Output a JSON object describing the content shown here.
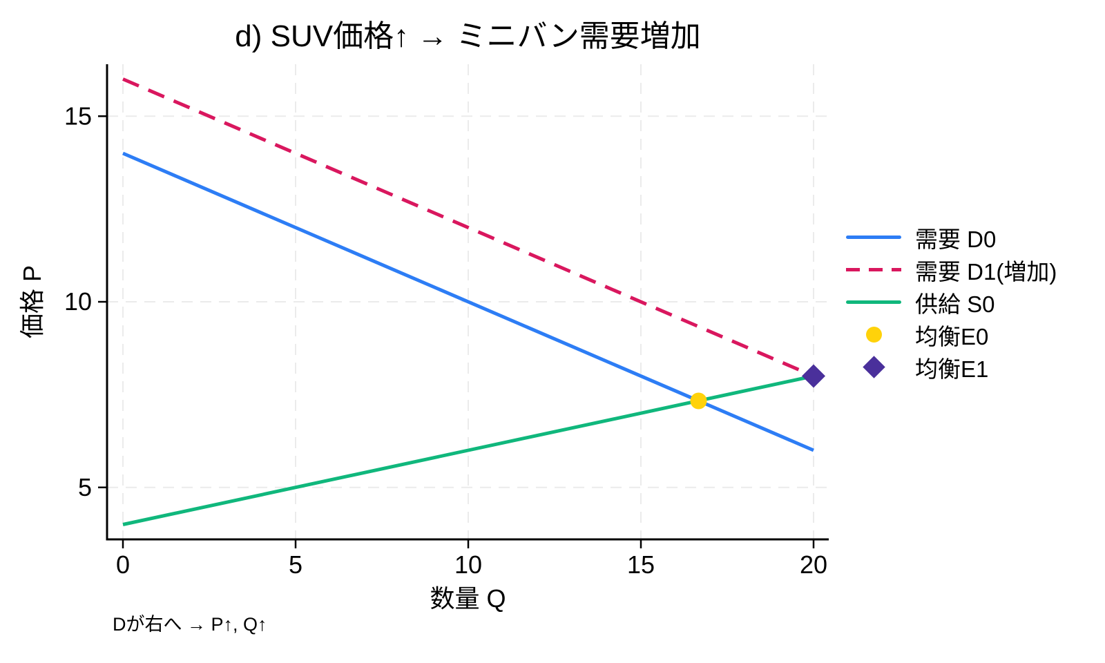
{
  "chart_data": {
    "type": "line",
    "title": "d) SUV価格↑ → ミニバン需要増加",
    "xlabel": "数量 Q",
    "ylabel": "価格 P",
    "annotation": "Dが右へ → P↑, Q↑",
    "x_ticks": [
      0,
      5,
      10,
      15,
      20
    ],
    "y_ticks": [
      5,
      10,
      15
    ],
    "xlim": [
      -0.46,
      20.44
    ],
    "ylim": [
      3.6,
      16.4
    ],
    "grid": true,
    "legend_position": "right-outside",
    "background": "#FFFFFF",
    "axis_color": "#000000",
    "grid_color": "#EBEBEB",
    "series": [
      {
        "id": "d0",
        "name": "需要 D0",
        "kind": "line",
        "dash": "solid",
        "color": "#2D7DF5",
        "points": [
          [
            0,
            14
          ],
          [
            20,
            6
          ]
        ],
        "swatch": "line"
      },
      {
        "id": "d1",
        "name": "需要 D1(増加)",
        "kind": "line",
        "dash": "dashed",
        "color": "#D9175E",
        "points": [
          [
            0,
            16
          ],
          [
            20,
            8
          ]
        ],
        "swatch": "dashed-line"
      },
      {
        "id": "s0",
        "name": "供給 S0",
        "kind": "line",
        "dash": "solid",
        "color": "#10B77C",
        "points": [
          [
            0,
            4
          ],
          [
            20,
            8
          ]
        ],
        "swatch": "line"
      },
      {
        "id": "e0",
        "name": "均衡E0",
        "kind": "marker",
        "marker": "circle",
        "color": "#FFD20A",
        "points": [
          [
            16.67,
            7.33
          ]
        ],
        "swatch": "circle"
      },
      {
        "id": "e1",
        "name": "均衡E1",
        "kind": "marker",
        "marker": "diamond",
        "color": "#4A309B",
        "points": [
          [
            20,
            8
          ]
        ],
        "swatch": "diamond"
      }
    ]
  }
}
